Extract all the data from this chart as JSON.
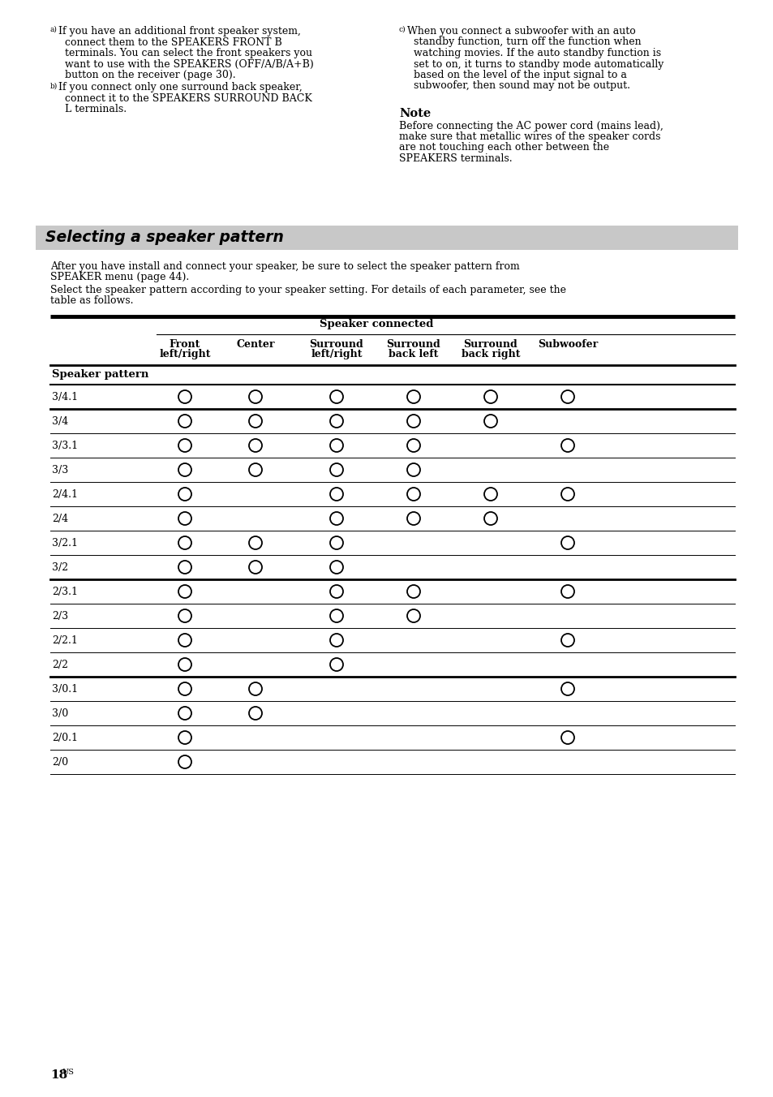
{
  "page_bg": "#ffffff",
  "section_title": "Selecting a speaker pattern",
  "section_bg": "#c8c8c8",
  "table_header_main": "Speaker connected",
  "table_col_headers": [
    "Front\nleft/right",
    "Center",
    "Surround\nleft/right",
    "Surround\nback left",
    "Surround\nback right",
    "Subwoofer"
  ],
  "row_label": "Speaker pattern",
  "patterns": [
    "3/4.1",
    "3/4",
    "3/3.1",
    "3/3",
    "2/4.1",
    "2/4",
    "3/2.1",
    "3/2",
    "2/3.1",
    "2/3",
    "2/2.1",
    "2/2",
    "3/0.1",
    "3/0",
    "2/0.1",
    "2/0"
  ],
  "circles": {
    "3/4.1": [
      1,
      1,
      1,
      1,
      1,
      1
    ],
    "3/4": [
      1,
      1,
      1,
      1,
      1,
      0
    ],
    "3/3.1": [
      1,
      1,
      1,
      1,
      0,
      1
    ],
    "3/3": [
      1,
      1,
      1,
      1,
      0,
      0
    ],
    "2/4.1": [
      1,
      0,
      1,
      1,
      1,
      1
    ],
    "2/4": [
      1,
      0,
      1,
      1,
      1,
      0
    ],
    "3/2.1": [
      1,
      1,
      1,
      0,
      0,
      1
    ],
    "3/2": [
      1,
      1,
      1,
      0,
      0,
      0
    ],
    "2/3.1": [
      1,
      0,
      1,
      1,
      0,
      1
    ],
    "2/3": [
      1,
      0,
      1,
      1,
      0,
      0
    ],
    "2/2.1": [
      1,
      0,
      1,
      0,
      0,
      1
    ],
    "2/2": [
      1,
      0,
      1,
      0,
      0,
      0
    ],
    "3/0.1": [
      1,
      1,
      0,
      0,
      0,
      1
    ],
    "3/0": [
      1,
      1,
      0,
      0,
      0,
      0
    ],
    "2/0.1": [
      1,
      0,
      0,
      0,
      0,
      1
    ],
    "2/0": [
      1,
      0,
      0,
      0,
      0,
      0
    ]
  },
  "thick_lines_after": [
    "3/4.1",
    "3/2",
    "2/2"
  ],
  "page_number": "18",
  "page_suffix": "US",
  "note_a_line1": "If you have an additional front speaker system,",
  "note_a_rest": [
    "connect them to the SPEAKERS FRONT B",
    "terminals. You can select the front speakers you",
    "want to use with the SPEAKERS (OFF/A/B/A+B)",
    "button on the receiver (page 30)."
  ],
  "note_b_line1": "If you connect only one surround back speaker,",
  "note_b_rest": [
    "connect it to the SPEAKERS SURROUND BACK",
    "L terminals."
  ],
  "note_c_line1": "When you connect a subwoofer with an auto",
  "note_c_rest": [
    "standby function, turn off the function when",
    "watching movies. If the auto standby function is",
    "set to on, it turns to standby mode automatically",
    "based on the level of the input signal to a",
    "subwoofer, then sound may not be output."
  ],
  "note_title": "Note",
  "note_body": [
    "Before connecting the AC power cord (mains lead),",
    "make sure that metallic wires of the speaker cords",
    "are not touching each other between the",
    "SPEAKERS terminals."
  ],
  "para1_lines": [
    "After you have install and connect your speaker, be sure to select the speaker pattern from",
    "SPEAKER menu (page 44)."
  ],
  "para2_lines": [
    "Select the speaker pattern according to your speaker setting. For details of each parameter, see the",
    "table as follows."
  ]
}
